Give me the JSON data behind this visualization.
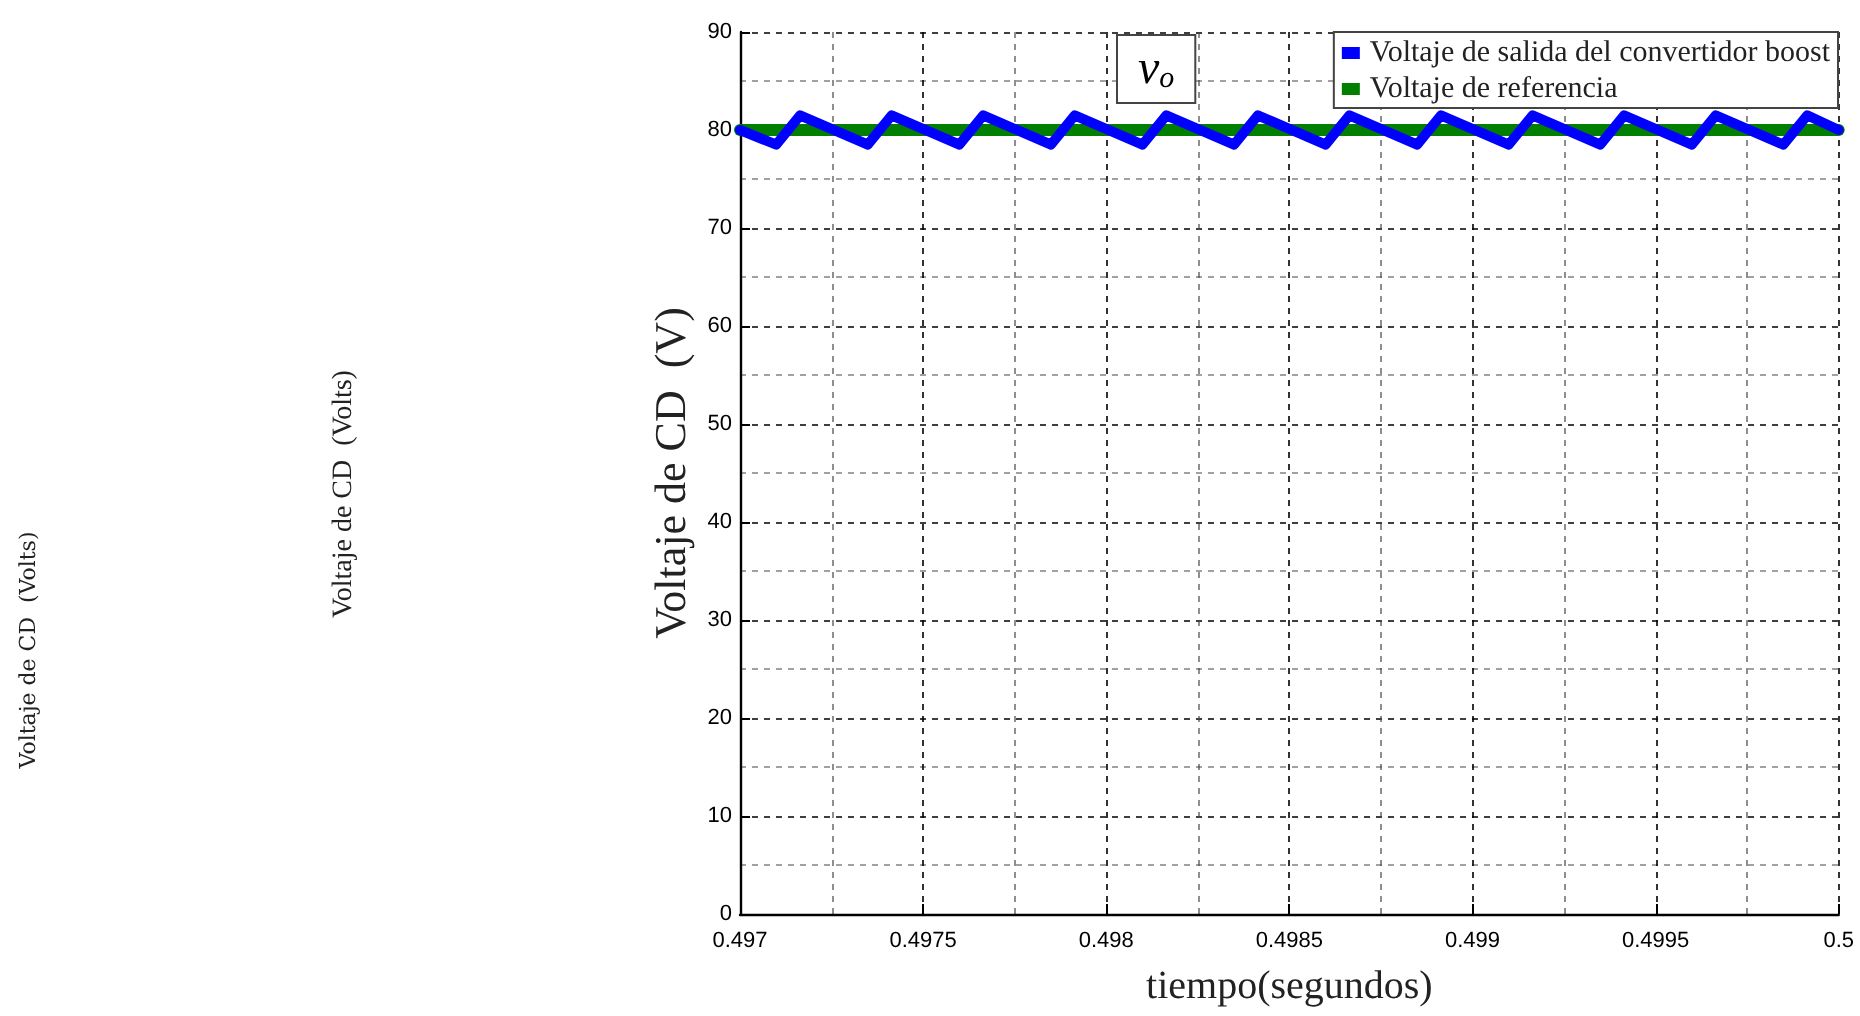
{
  "chart_data": {
    "type": "line",
    "xlabel": "tiempo(segundos)",
    "ylabel": "Voltaje de CD  (V)",
    "annotations": [
      "v$_{o}$",
      "Voltaje de CD  (Volts)",
      "Voltaje de CD  (Volts)"
    ],
    "series": [
      {
        "name": "Voltaje de salida del convertidor boost",
        "color": "#0000ff",
        "x": [
          0.497,
          0.497099,
          0.497164,
          0.497349,
          0.497414,
          0.497599,
          0.497664,
          0.497849,
          0.497914,
          0.498099,
          0.498164,
          0.498349,
          0.498414,
          0.498599,
          0.498664,
          0.498849,
          0.498914,
          0.499099,
          0.499164,
          0.499349,
          0.499414,
          0.499599,
          0.499664,
          0.499849,
          0.499914,
          0.5
        ],
        "values": [
          80,
          78.5,
          81.5,
          78.5,
          81.5,
          78.5,
          81.5,
          78.5,
          81.5,
          78.5,
          81.5,
          78.5,
          81.5,
          78.5,
          81.5,
          78.5,
          81.5,
          78.5,
          81.5,
          78.5,
          81.5,
          78.5,
          81.5,
          78.5,
          81.5,
          80
        ]
      },
      {
        "name": "Voltaje de referencia",
        "color": "#007f00",
        "x": [
          0.497,
          0.5
        ],
        "values": [
          80,
          80
        ]
      }
    ],
    "xlim": [
      0.497,
      0.5
    ],
    "xticks": [
      0.497,
      0.4975,
      0.498,
      0.4985,
      0.499,
      0.4995,
      0.5
    ],
    "ylim": [
      0,
      90
    ],
    "yticks": [
      0,
      10,
      20,
      30,
      40,
      50,
      60,
      70,
      80,
      90
    ],
    "grid": true,
    "legend": "top right",
    "marker": "none",
    "line_style": "solid"
  }
}
